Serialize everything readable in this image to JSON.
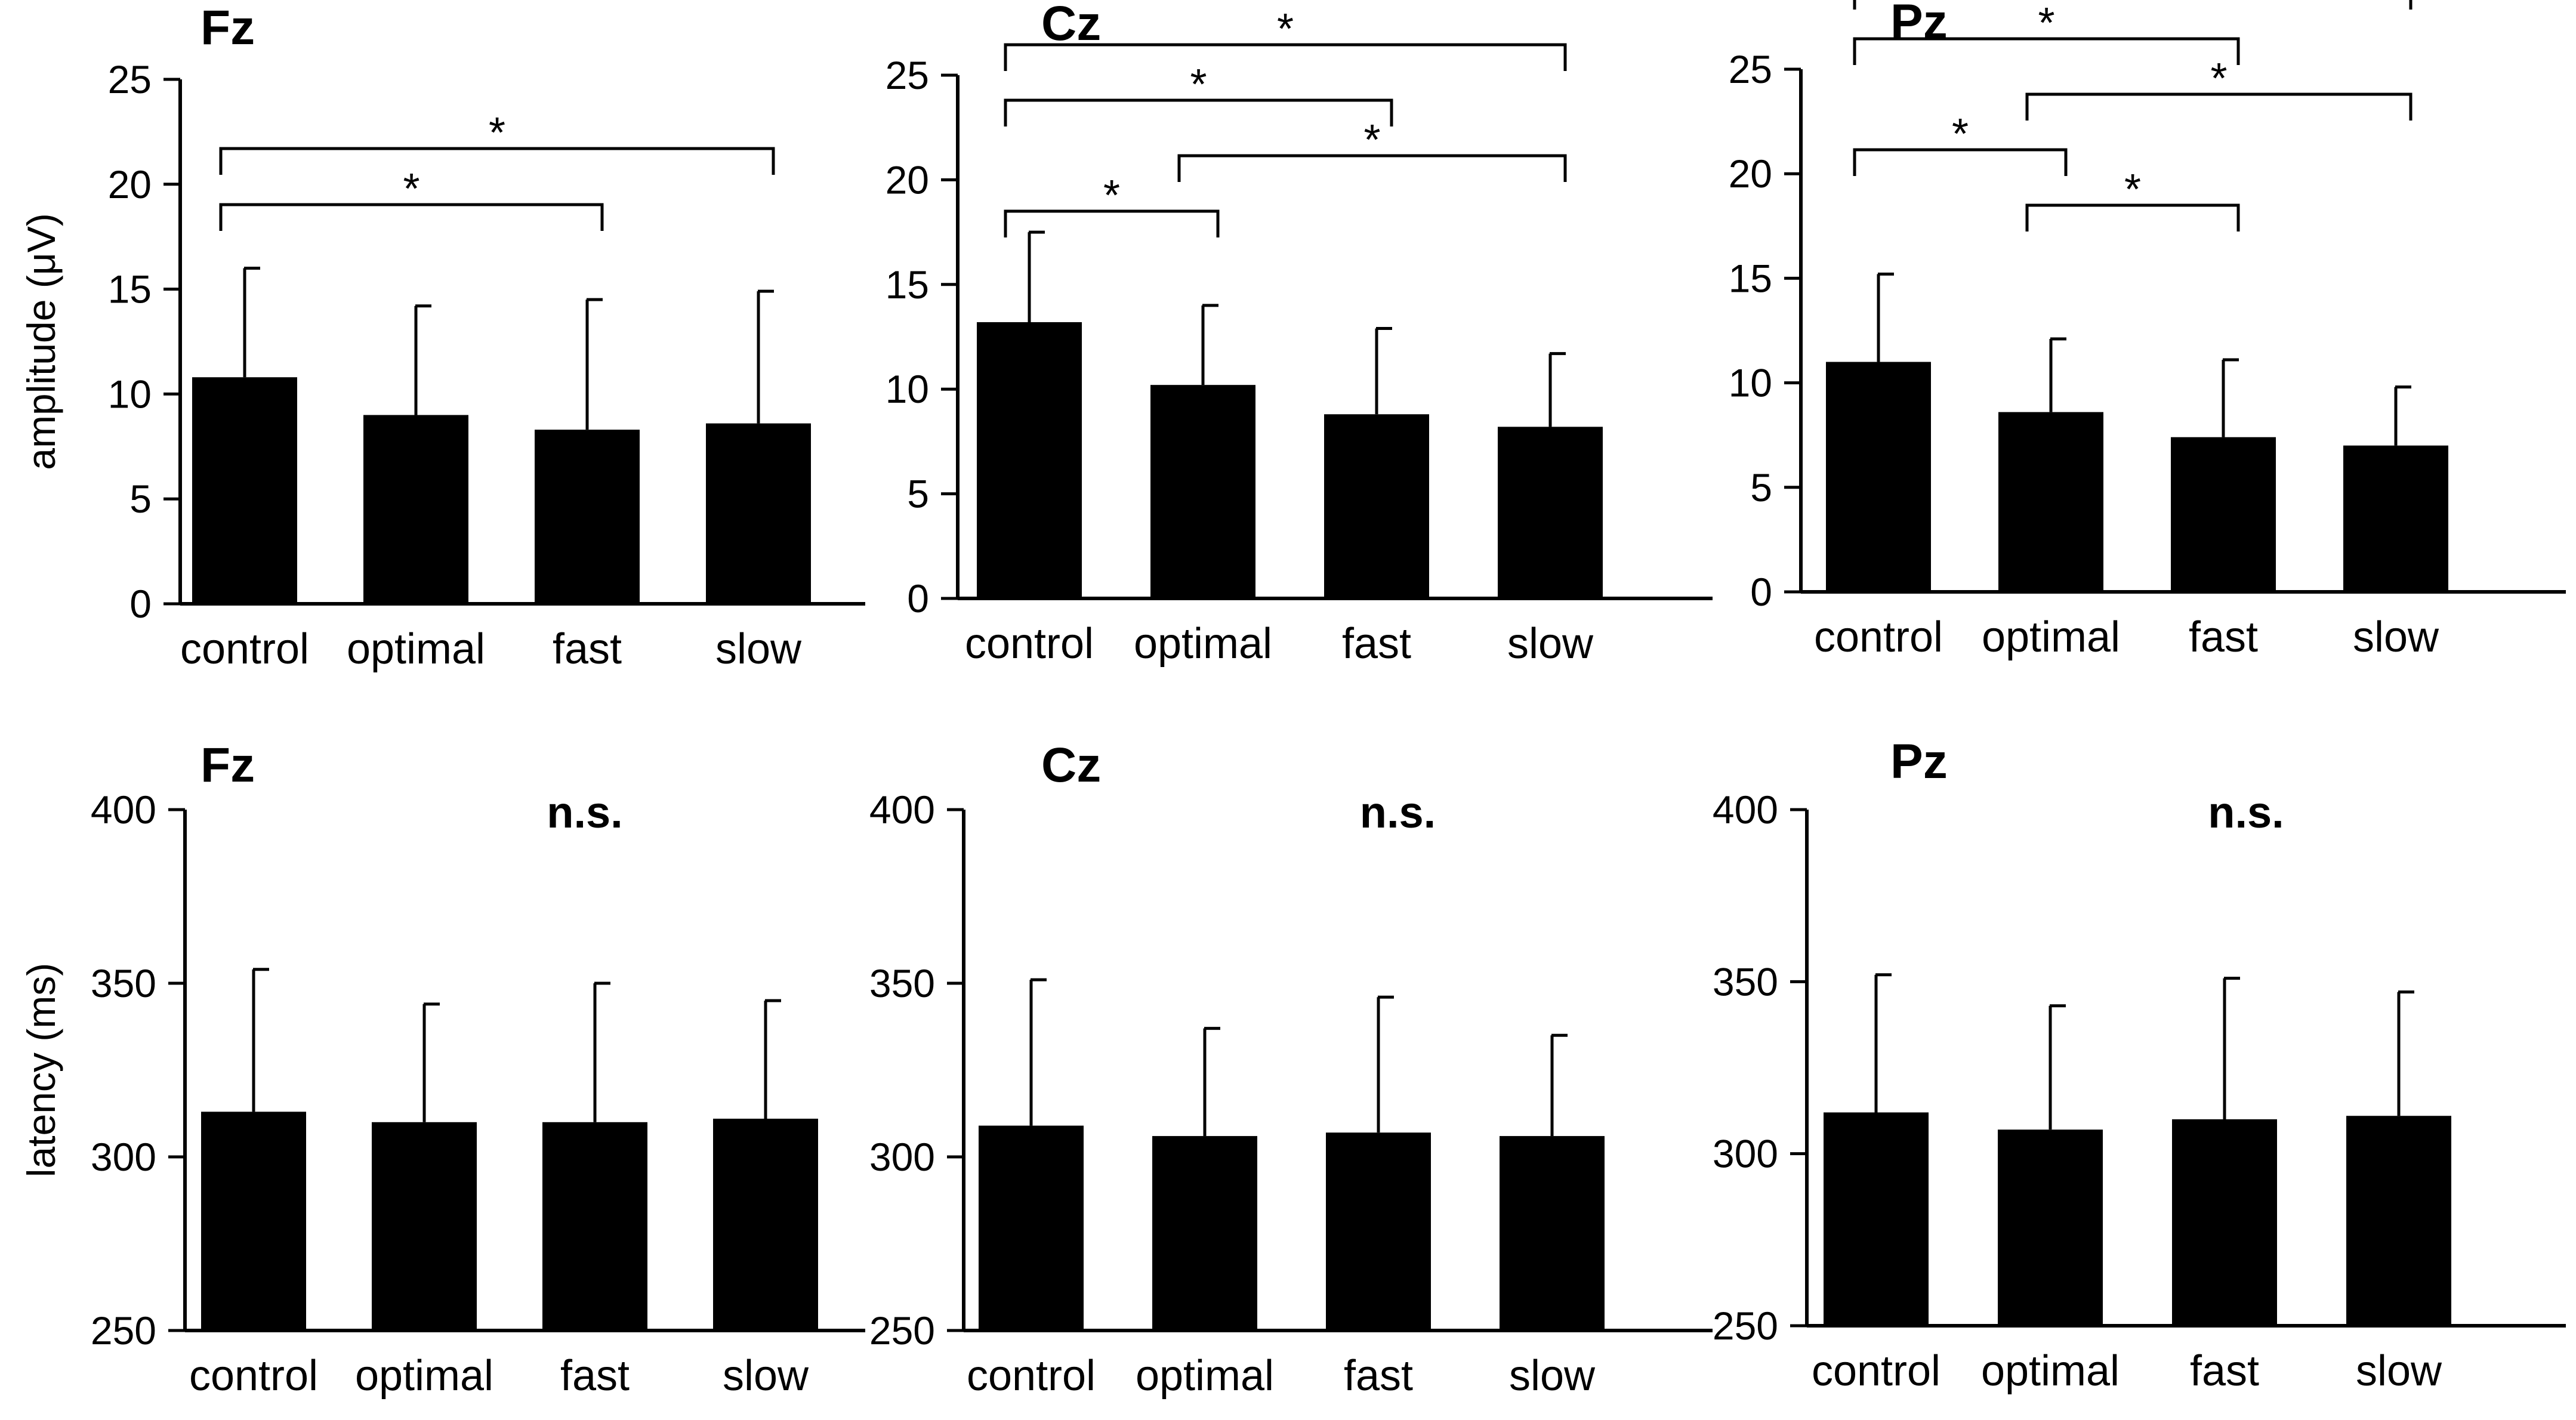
{
  "chart_data": [
    {
      "type": "bar",
      "title": "Fz",
      "ylabel": "amplitude (μV)",
      "xlabel": "",
      "categories": [
        "control",
        "optimal",
        "fast",
        "slow"
      ],
      "values": [
        10.8,
        9.0,
        8.3,
        8.6
      ],
      "errors": [
        5.2,
        5.2,
        6.2,
        6.3
      ],
      "ylim": [
        0,
        25
      ],
      "yticks": [
        "0",
        "5",
        "10",
        "15",
        "20",
        "25"
      ],
      "annotations": [
        {
          "from": 0,
          "to": 2,
          "label": "*"
        },
        {
          "from": 0,
          "to": 3,
          "label": "*"
        }
      ]
    },
    {
      "type": "bar",
      "title": "Cz",
      "ylabel": "",
      "xlabel": "",
      "categories": [
        "control",
        "optimal",
        "fast",
        "slow"
      ],
      "values": [
        13.2,
        10.2,
        8.8,
        8.2
      ],
      "errors": [
        4.3,
        3.8,
        4.1,
        3.5
      ],
      "ylim": [
        0,
        25
      ],
      "yticks": [
        "0",
        "5",
        "10",
        "15",
        "20",
        "25"
      ],
      "annotations": [
        {
          "from": 0,
          "to": 1,
          "label": "*"
        },
        {
          "from": 1,
          "to": 3,
          "label": "*"
        },
        {
          "from": 0,
          "to": 2,
          "label": "*"
        },
        {
          "from": 0,
          "to": 3,
          "label": "*"
        }
      ]
    },
    {
      "type": "bar",
      "title": "Pz",
      "ylabel": "",
      "xlabel": "",
      "categories": [
        "control",
        "optimal",
        "fast",
        "slow"
      ],
      "values": [
        11.0,
        8.6,
        7.4,
        7.0
      ],
      "errors": [
        4.2,
        3.5,
        3.7,
        2.8
      ],
      "ylim": [
        0,
        25
      ],
      "yticks": [
        "0",
        "5",
        "10",
        "15",
        "20",
        "25"
      ],
      "annotations": [
        {
          "from": 1,
          "to": 2,
          "label": "*"
        },
        {
          "from": 0,
          "to": 1,
          "label": "*"
        },
        {
          "from": 1,
          "to": 3,
          "label": "*"
        },
        {
          "from": 0,
          "to": 2,
          "label": "*"
        },
        {
          "from": 0,
          "to": 3,
          "label": "*"
        }
      ]
    },
    {
      "type": "bar",
      "title": "Fz",
      "ylabel": "latency (ms)",
      "xlabel": "",
      "categories": [
        "control",
        "optimal",
        "fast",
        "slow"
      ],
      "values": [
        313,
        310,
        310,
        311
      ],
      "errors": [
        41,
        34,
        40,
        34
      ],
      "ylim": [
        250,
        400
      ],
      "yticks": [
        "250",
        "300",
        "350",
        "400"
      ],
      "significance": "n.s."
    },
    {
      "type": "bar",
      "title": "Cz",
      "ylabel": "",
      "xlabel": "",
      "categories": [
        "control",
        "optimal",
        "fast",
        "slow"
      ],
      "values": [
        309,
        306,
        307,
        306
      ],
      "errors": [
        42,
        31,
        39,
        29
      ],
      "ylim": [
        250,
        400
      ],
      "yticks": [
        "250",
        "300",
        "350",
        "400"
      ],
      "significance": "n.s."
    },
    {
      "type": "bar",
      "title": "Pz",
      "ylabel": "",
      "xlabel": "",
      "categories": [
        "control",
        "optimal",
        "fast",
        "slow"
      ],
      "values": [
        312,
        307,
        310,
        311
      ],
      "errors": [
        40,
        36,
        41,
        36
      ],
      "ylim": [
        250,
        400
      ],
      "yticks": [
        "250",
        "300",
        "350",
        "400"
      ],
      "significance": "n.s."
    }
  ]
}
